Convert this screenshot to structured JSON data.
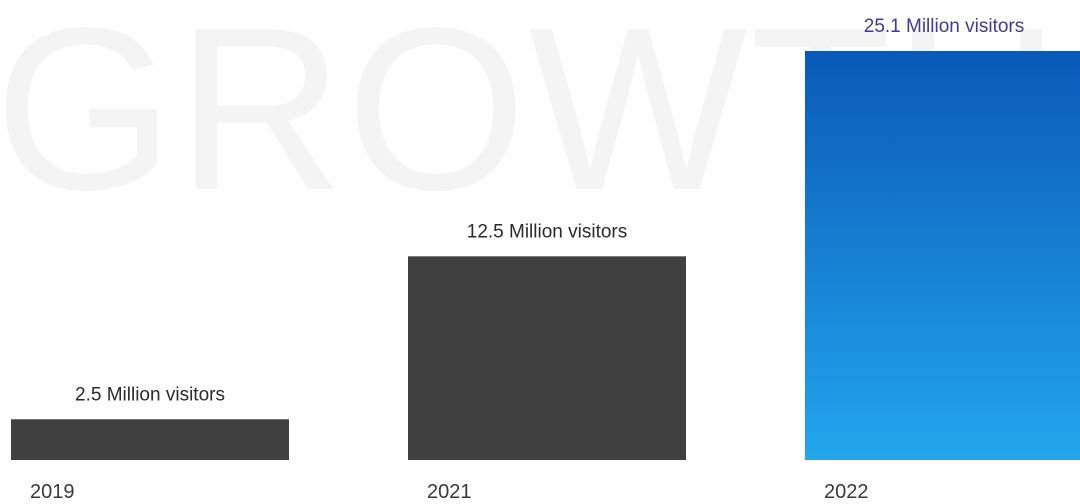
{
  "watermark": "GROWTH",
  "colors": {
    "bar_dark": "#404040",
    "highlight_top": "#0a59b8",
    "highlight_bottom": "#22a6ec",
    "label_dark": "#2b2b2b",
    "label_highlight": "#3d3aa0"
  },
  "chart_data": {
    "type": "bar",
    "categories": [
      "2019",
      "2021",
      "2022"
    ],
    "values": [
      2.5,
      12.5,
      25.1
    ],
    "value_labels": [
      "2.5 Million visitors",
      "12.5 Million visitors",
      "25.1 Million visitors"
    ],
    "highlight_index": 2,
    "title": "",
    "xlabel": "",
    "ylabel": "",
    "ylim": [
      0,
      25.1
    ],
    "grid": false
  }
}
